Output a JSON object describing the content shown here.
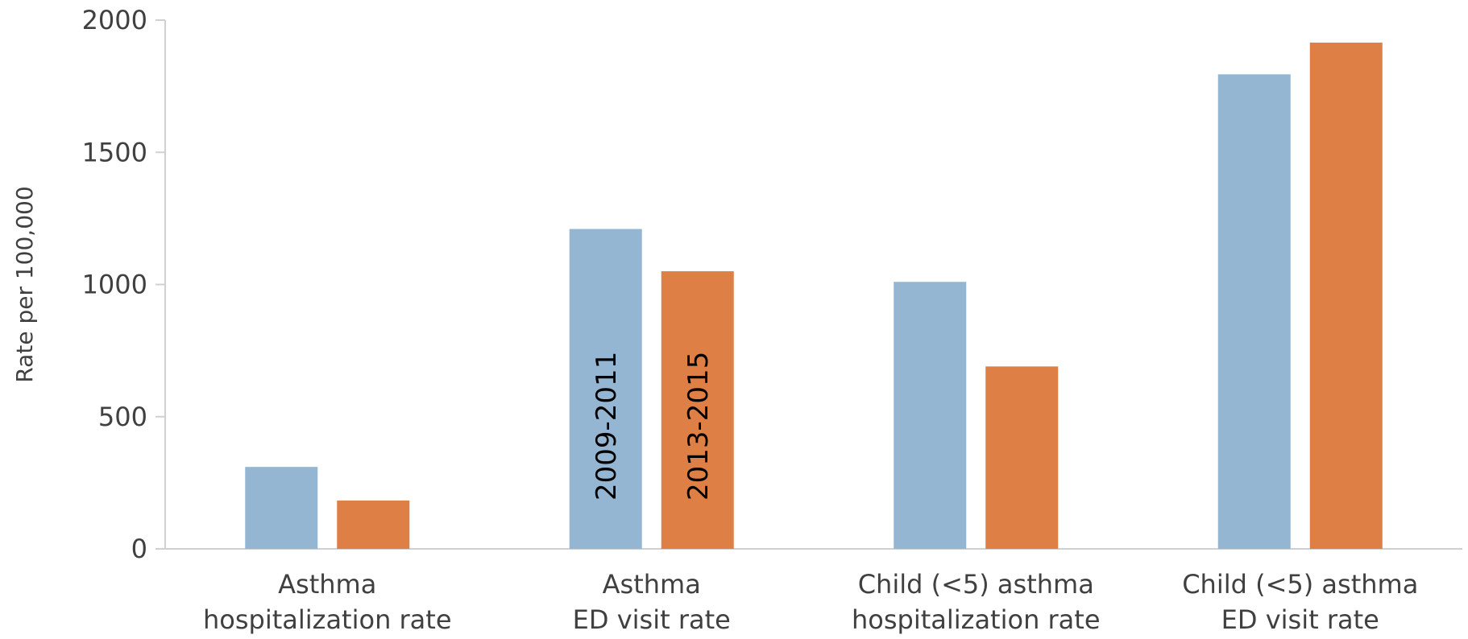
{
  "chart_data": {
    "type": "bar",
    "title": "",
    "ylabel": "Rate per 100,000",
    "xlabel": "",
    "ylim": [
      0,
      2000
    ],
    "yticks": [
      0,
      500,
      1000,
      1500,
      2000
    ],
    "categories": [
      [
        "Asthma",
        "hospitalization rate"
      ],
      [
        "Asthma",
        "ED visit rate"
      ],
      [
        "Child (<5) asthma",
        "hospitalization rate"
      ],
      [
        "Child (<5) asthma",
        "ED visit rate"
      ]
    ],
    "series": [
      {
        "name": "2009-2011",
        "color": "#95b6d2",
        "values": [
          310,
          1210,
          1010,
          1795
        ]
      },
      {
        "name": "2013-2015",
        "color": "#de7f45",
        "values": [
          183,
          1050,
          690,
          1915
        ]
      }
    ],
    "legend": "in-bar labels on second category",
    "grid": false
  }
}
